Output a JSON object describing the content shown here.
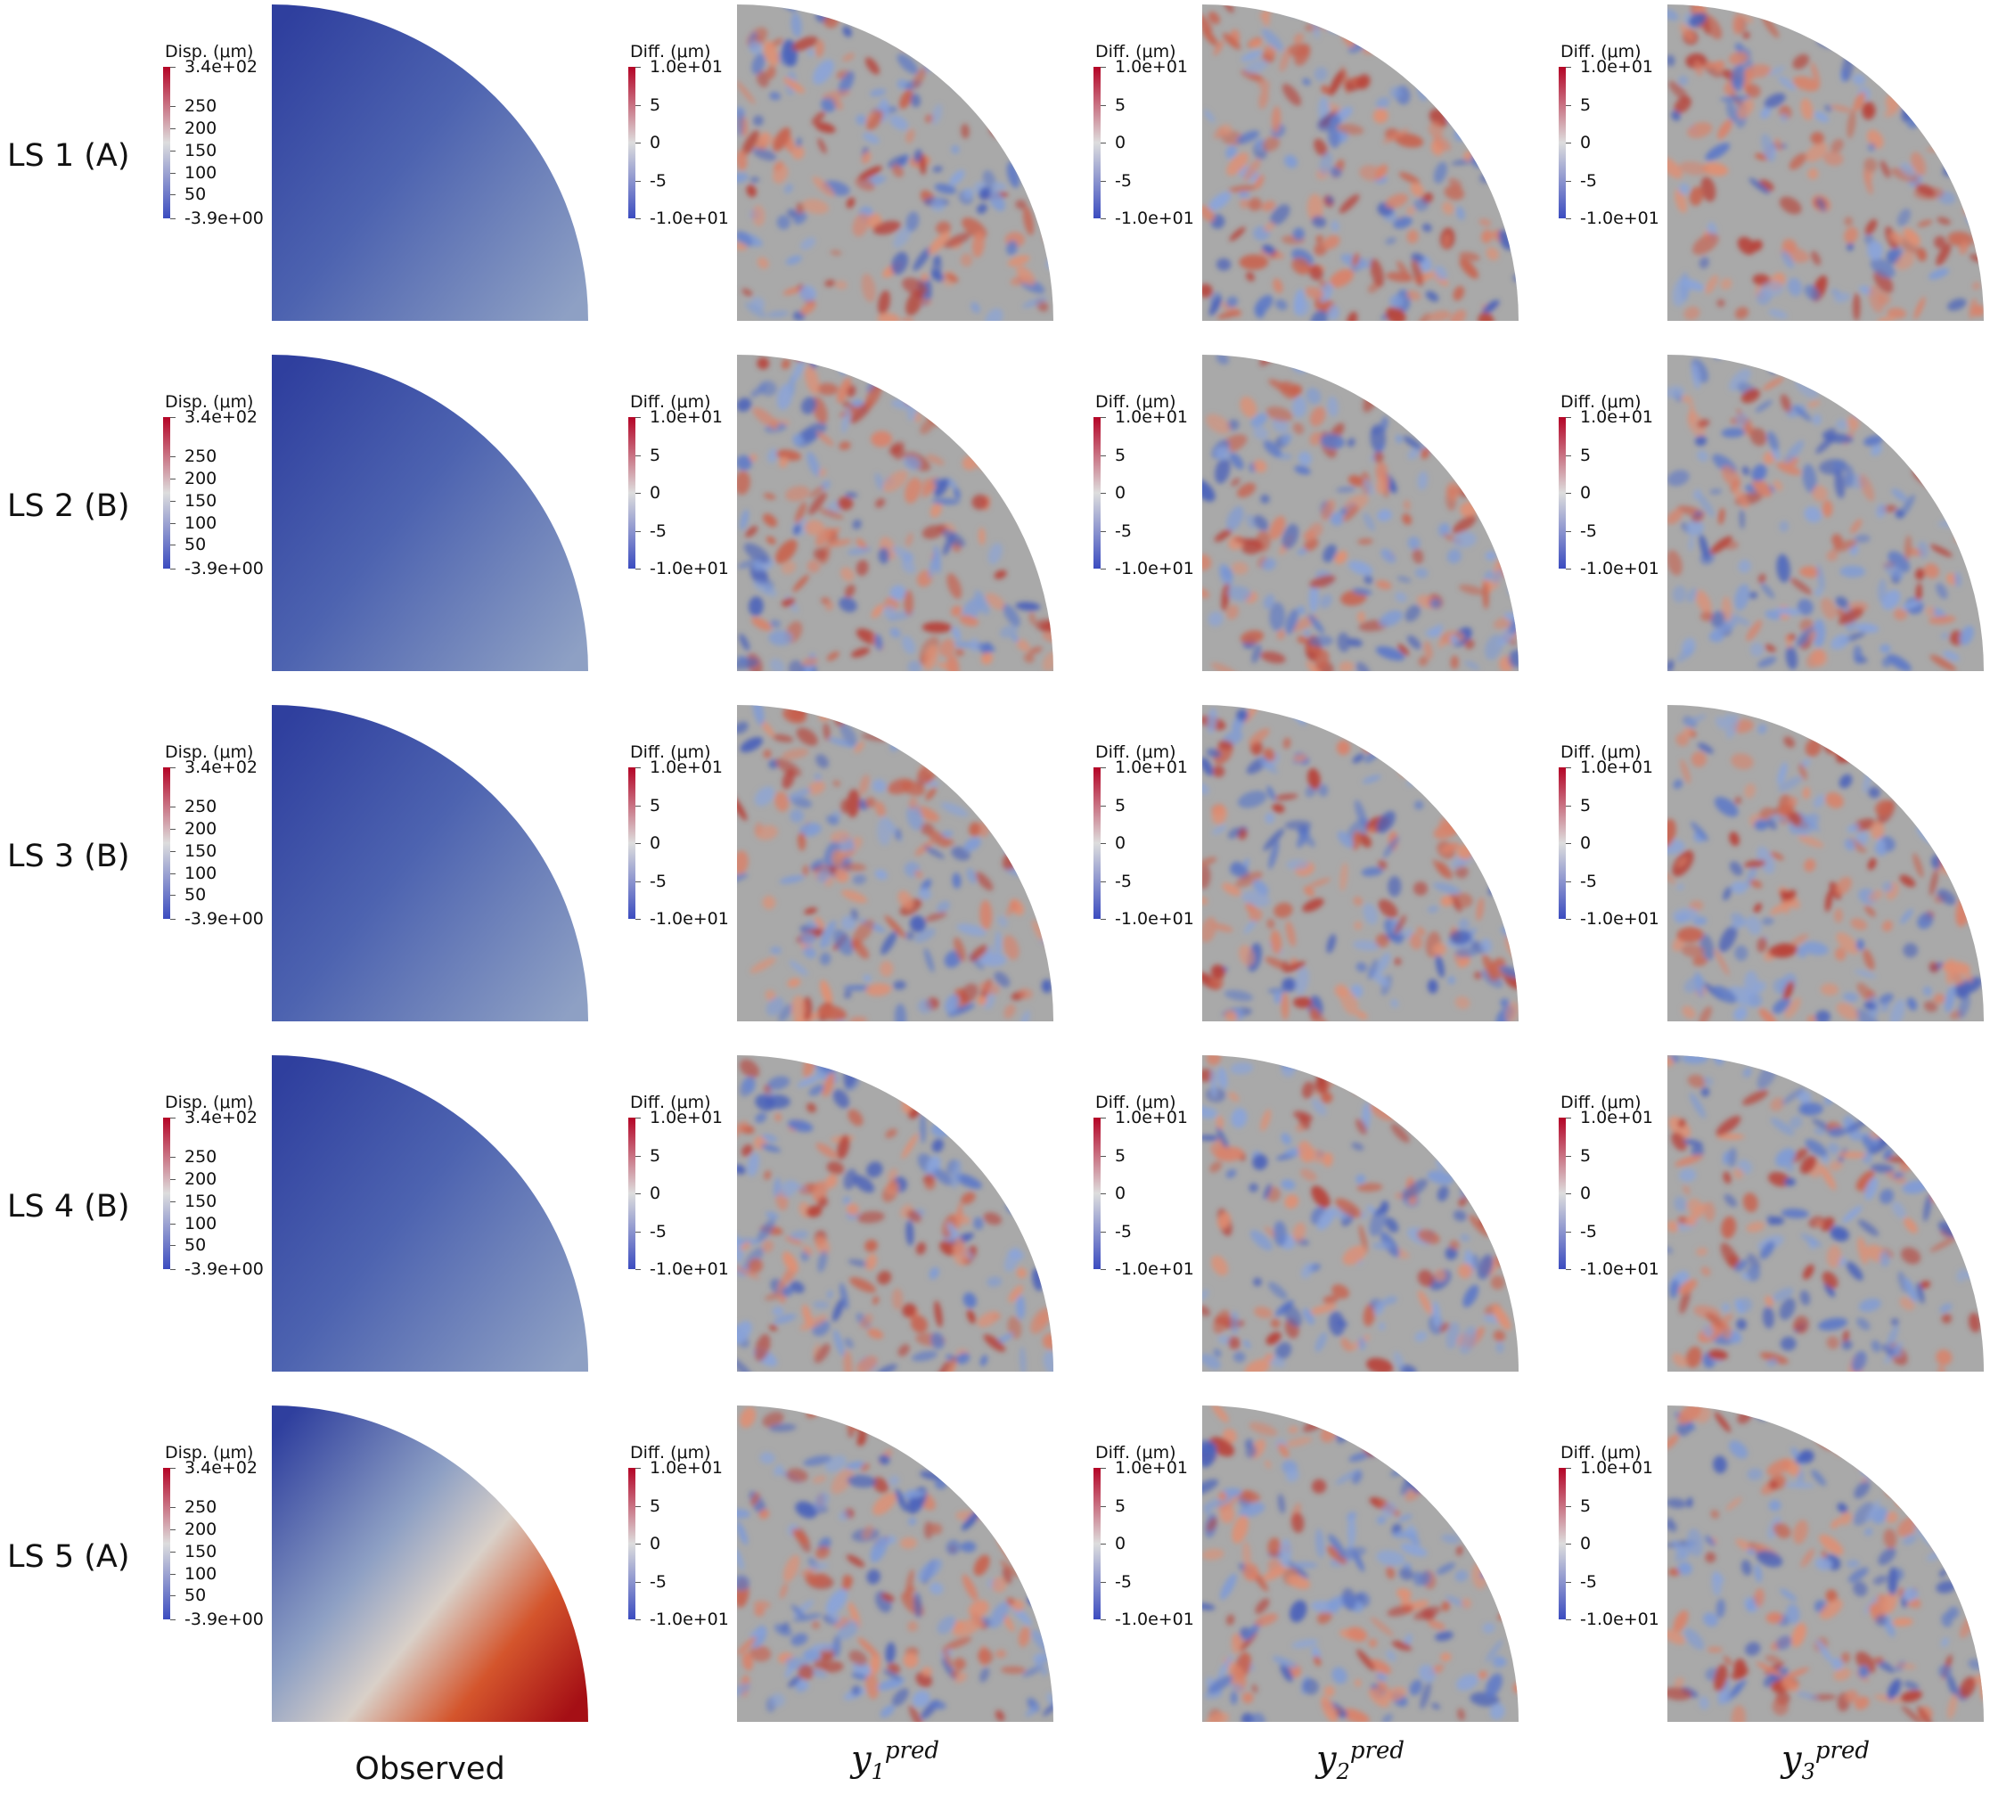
{
  "rows": [
    {
      "label": "LS 1 (A)"
    },
    {
      "label": "LS 2 (B)"
    },
    {
      "label": "LS 3 (B)"
    },
    {
      "label": "LS 4 (B)"
    },
    {
      "label": "LS 5 (A)"
    }
  ],
  "columns": [
    {
      "label": "Observed"
    },
    {
      "var": "y",
      "sub": "1",
      "sup": "pred"
    },
    {
      "var": "y",
      "sub": "2",
      "sup": "pred"
    },
    {
      "var": "y",
      "sub": "3",
      "sup": "pred"
    }
  ],
  "colorbars": {
    "displacement": {
      "title": "Disp. (μm)",
      "ticks": [
        "3.4e+02",
        "250",
        "200",
        "150",
        "100",
        "50",
        "-3.9e+00"
      ],
      "tick_values": [
        340,
        250,
        200,
        150,
        100,
        50,
        -3.9
      ],
      "range": [
        -3.9,
        340
      ]
    },
    "difference": {
      "title": "Diff. (μm)",
      "ticks": [
        "1.0e+01",
        "5",
        "0",
        "-5",
        "-1.0e+01"
      ],
      "tick_values": [
        10,
        5,
        0,
        -5,
        -10
      ],
      "range": [
        -10,
        10
      ]
    }
  },
  "colors": {
    "low": "#3b4cc0",
    "mid": "#dddddd",
    "high": "#b40426",
    "neutral_gray": "#a9a9a9",
    "observed_gradient_ls1_4": [
      "#2f3f9e",
      "#4d63b0",
      "#8ea0c4"
    ],
    "observed_gradient_ls5": [
      "#2f3f9e",
      "#8ea0c4",
      "#d9d0c8",
      "#d4552c",
      "#a50f15"
    ]
  }
}
